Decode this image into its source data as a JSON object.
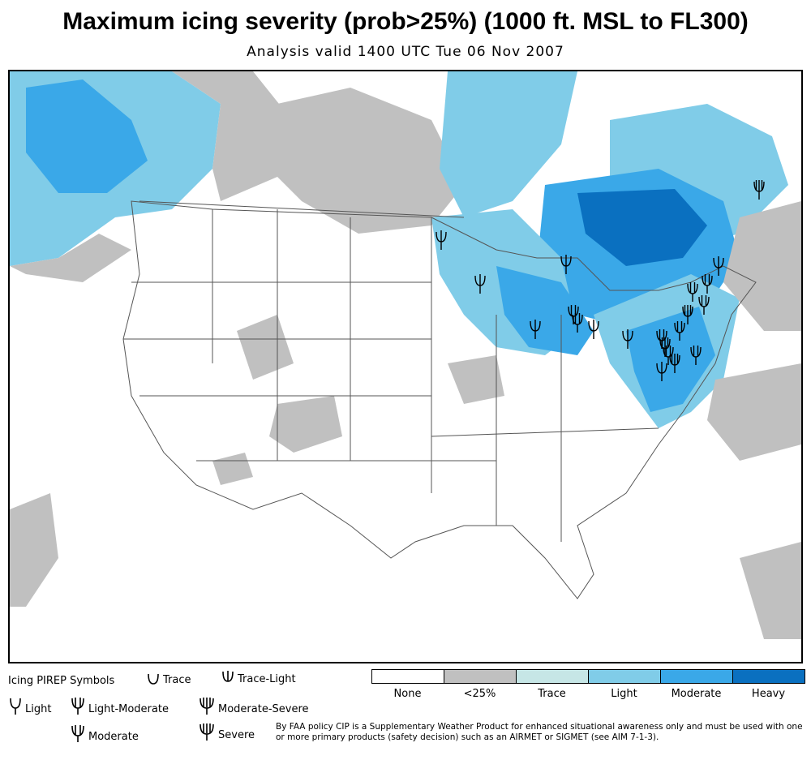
{
  "title": "Maximum icing severity (prob>25%) (1000 ft. MSL to FL300)",
  "subtitle": "Analysis valid 1400 UTC Tue 06 Nov 2007",
  "legend": {
    "pirep_title": "Icing PIREP Symbols",
    "symbols": [
      {
        "label": "Trace",
        "prongs": 0
      },
      {
        "label": "Trace-Light",
        "prongs": 1
      },
      {
        "label": "Light",
        "prongs": 1
      },
      {
        "label": "Light-Moderate",
        "prongs": 2
      },
      {
        "label": "Moderate-Severe",
        "prongs": 3
      },
      {
        "label": "Moderate",
        "prongs": 2
      },
      {
        "label": "Severe",
        "prongs": 3
      }
    ],
    "severity_scale": [
      {
        "label": "None",
        "color": "#ffffff"
      },
      {
        "label": "<25%",
        "color": "#c0c0c0"
      },
      {
        "label": "Trace",
        "color": "#c6e6e6"
      },
      {
        "label": "Light",
        "color": "#80cce8"
      },
      {
        "label": "Moderate",
        "color": "#3aa8e8"
      },
      {
        "label": "Heavy",
        "color": "#0a70c0"
      }
    ]
  },
  "disclaimer": "By FAA policy CIP is a Supplementary Weather Product for enhanced situational awareness only and must be used with one or more primary products (safety decision) such as an AIRMET or SIGMET (see AIM 7-1-3)."
}
